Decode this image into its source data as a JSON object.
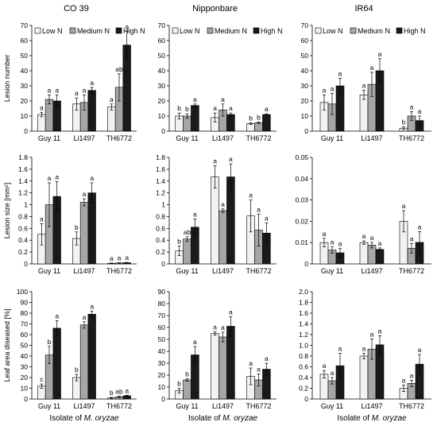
{
  "figure": {
    "xlabel_prefix": "Isolate of ",
    "xlabel_italic": "M. oryzae"
  },
  "colors": {
    "low": "#f2f2f2",
    "medium": "#a6a6a6",
    "high": "#1a1a1a",
    "axis": "#000000",
    "error": "#000000"
  },
  "chart_data": [
    {
      "id": "r0c0",
      "type": "bar",
      "title": "CO 39",
      "ylabel": "Lesion number",
      "ylim": [
        0,
        70
      ],
      "yticks": [
        0,
        10,
        20,
        30,
        40,
        50,
        60,
        70
      ],
      "ytick_labels": [
        "0",
        "10",
        "20",
        "30",
        "40",
        "50",
        "60",
        "70"
      ],
      "categories": [
        "Guy 11",
        "Li1497",
        "TH6772"
      ],
      "legend": [
        "Low N",
        "Medium N",
        "High N"
      ],
      "series": [
        {
          "name": "Low N",
          "values": [
            11,
            18,
            16
          ],
          "errors": [
            1.5,
            4,
            2
          ],
          "letters": [
            "a",
            "a",
            "a"
          ]
        },
        {
          "name": "Medium N",
          "values": [
            21,
            19,
            29
          ],
          "errors": [
            3,
            5,
            9
          ],
          "letters": [
            "a",
            "a",
            "ab"
          ]
        },
        {
          "name": "High N",
          "values": [
            20,
            27,
            57
          ],
          "errors": [
            4,
            2,
            9
          ],
          "letters": [
            "a",
            "a",
            "a"
          ]
        }
      ]
    },
    {
      "id": "r0c1",
      "type": "bar",
      "title": "Nipponbare",
      "ylabel": "",
      "ylim": [
        0,
        70
      ],
      "yticks": [
        0,
        10,
        20,
        30,
        40,
        50,
        60,
        70
      ],
      "ytick_labels": [
        "0",
        "10",
        "20",
        "30",
        "40",
        "50",
        "60",
        "70"
      ],
      "categories": [
        "Guy 11",
        "Li1497",
        "TH6772"
      ],
      "legend": [
        "Low N",
        "Medium N",
        "High N"
      ],
      "series": [
        {
          "name": "Low N",
          "values": [
            10,
            9,
            5
          ],
          "errors": [
            2,
            3,
            0.5
          ],
          "letters": [
            "b",
            "a",
            "b"
          ]
        },
        {
          "name": "Medium N",
          "values": [
            10,
            14,
            5.5
          ],
          "errors": [
            1.5,
            4,
            0.5
          ],
          "letters": [
            "b",
            "a",
            "b"
          ]
        },
        {
          "name": "High N",
          "values": [
            17,
            11,
            11
          ],
          "errors": [
            1,
            1,
            0.5
          ],
          "letters": [
            "a",
            "a",
            "a"
          ]
        }
      ]
    },
    {
      "id": "r0c2",
      "type": "bar",
      "title": "IR64",
      "ylabel": "",
      "ylim": [
        0,
        70
      ],
      "yticks": [
        0,
        10,
        20,
        30,
        40,
        50,
        60,
        70
      ],
      "ytick_labels": [
        "0",
        "10",
        "20",
        "30",
        "40",
        "50",
        "60",
        "70"
      ],
      "categories": [
        "Guy 11",
        "Li1497",
        "TH6772"
      ],
      "legend": [
        "Low N",
        "Medium N",
        "High N"
      ],
      "series": [
        {
          "name": "Low N",
          "values": [
            19,
            24,
            2
          ],
          "errors": [
            5,
            3,
            1
          ],
          "letters": [
            "a",
            "a",
            "b"
          ]
        },
        {
          "name": "Medium N",
          "values": [
            18,
            31,
            10
          ],
          "errors": [
            7,
            8,
            3
          ],
          "letters": [
            "a",
            "a",
            "a"
          ]
        },
        {
          "name": "High N",
          "values": [
            30,
            40,
            7
          ],
          "errors": [
            5,
            8,
            3
          ],
          "letters": [
            "a",
            "a",
            "a"
          ]
        }
      ]
    },
    {
      "id": "r1c0",
      "type": "bar",
      "title": "",
      "ylabel": "Lesion size [mm²]",
      "ylim": [
        0,
        1.8
      ],
      "yticks": [
        0,
        0.2,
        0.4,
        0.6,
        0.8,
        1.0,
        1.2,
        1.4,
        1.6,
        1.8
      ],
      "ytick_labels": [
        "0",
        "0.2",
        "0.4",
        "0.6",
        "0.8",
        "1",
        "1.2",
        "1.4",
        "1.6",
        "1.8"
      ],
      "categories": [
        "Guy 11",
        "Li1497",
        "TH6772"
      ],
      "series": [
        {
          "name": "Low N",
          "values": [
            0.5,
            0.43,
            0.01
          ],
          "errors": [
            0.18,
            0.11,
            0.005
          ],
          "letters": [
            "a",
            "b",
            "a"
          ]
        },
        {
          "name": "Medium N",
          "values": [
            1.0,
            1.04,
            0.015
          ],
          "errors": [
            0.37,
            0.06,
            0.005
          ],
          "letters": [
            "a",
            "a",
            "a"
          ]
        },
        {
          "name": "High N",
          "values": [
            1.14,
            1.2,
            0.02
          ],
          "errors": [
            0.25,
            0.17,
            0.005
          ],
          "letters": [
            "a",
            "a",
            "a"
          ]
        }
      ]
    },
    {
      "id": "r1c1",
      "type": "bar",
      "title": "",
      "ylabel": "",
      "ylim": [
        0,
        1.8
      ],
      "yticks": [
        0,
        0.2,
        0.4,
        0.6,
        0.8,
        1.0,
        1.2,
        1.4,
        1.6,
        1.8
      ],
      "ytick_labels": [
        "0",
        "0.2",
        "0.4",
        "0.6",
        "0.8",
        "1",
        "1.2",
        "1.4",
        "1.6",
        "1.8"
      ],
      "categories": [
        "Guy 11",
        "Li1497",
        "TH6772"
      ],
      "series": [
        {
          "name": "Low N",
          "values": [
            0.22,
            1.47,
            0.81
          ],
          "errors": [
            0.08,
            0.19,
            0.27
          ],
          "letters": [
            "b",
            "a",
            "a"
          ]
        },
        {
          "name": "Medium N",
          "values": [
            0.42,
            0.9,
            0.57
          ],
          "errors": [
            0.04,
            0.03,
            0.27
          ],
          "letters": [
            "ab",
            "a",
            "a"
          ]
        },
        {
          "name": "High N",
          "values": [
            0.62,
            1.47,
            0.52
          ],
          "errors": [
            0.14,
            0.22,
            0.17
          ],
          "letters": [
            "a",
            "a",
            "a"
          ]
        }
      ]
    },
    {
      "id": "r1c2",
      "type": "bar",
      "title": "",
      "ylabel": "",
      "ylim": [
        0,
        0.05
      ],
      "yticks": [
        0,
        0.01,
        0.02,
        0.03,
        0.04,
        0.05
      ],
      "ytick_labels": [
        "0",
        "0.01",
        "0.02",
        "0.03",
        "0.04",
        "0.05"
      ],
      "categories": [
        "Guy 11",
        "Li1497",
        "TH6772"
      ],
      "series": [
        {
          "name": "Low N",
          "values": [
            0.01,
            0.01,
            0.02
          ],
          "errors": [
            0.002,
            0.0008,
            0.005
          ],
          "letters": [
            "a",
            "a",
            "a"
          ]
        },
        {
          "name": "Medium N",
          "values": [
            0.0065,
            0.0088,
            0.0073
          ],
          "errors": [
            0.0015,
            0.0013,
            0.0022
          ],
          "letters": [
            "a",
            "a",
            "a"
          ]
        },
        {
          "name": "High N",
          "values": [
            0.0052,
            0.0068,
            0.0101
          ],
          "errors": [
            0.002,
            0.0007,
            0.005
          ],
          "letters": [
            "a",
            "a",
            "a"
          ]
        }
      ]
    },
    {
      "id": "r2c0",
      "type": "bar",
      "title": "",
      "ylabel": "Leaf area diseased [%]",
      "ylim": [
        0,
        100
      ],
      "yticks": [
        0,
        10,
        20,
        30,
        40,
        50,
        60,
        70,
        80,
        90,
        100
      ],
      "ytick_labels": [
        "0",
        "10",
        "20",
        "30",
        "40",
        "50",
        "60",
        "70",
        "80",
        "90",
        "100"
      ],
      "categories": [
        "Guy 11",
        "Li1497",
        "TH6772"
      ],
      "series": [
        {
          "name": "Low N",
          "values": [
            12,
            20,
            1
          ],
          "errors": [
            2,
            3,
            0.5
          ],
          "letters": [
            "c",
            "b",
            "b"
          ]
        },
        {
          "name": "Medium N",
          "values": [
            41,
            69,
            2
          ],
          "errors": [
            8,
            3,
            0.5
          ],
          "letters": [
            "b",
            "a",
            "ab"
          ]
        },
        {
          "name": "High N",
          "values": [
            66,
            79,
            3
          ],
          "errors": [
            7,
            3,
            0.5
          ],
          "letters": [
            "a",
            "a",
            "a"
          ]
        }
      ]
    },
    {
      "id": "r2c1",
      "type": "bar",
      "title": "",
      "ylabel": "",
      "ylim": [
        0,
        90
      ],
      "yticks": [
        0,
        10,
        20,
        30,
        40,
        50,
        60,
        70,
        80,
        90
      ],
      "ytick_labels": [
        "0",
        "10",
        "20",
        "30",
        "40",
        "50",
        "60",
        "70",
        "80",
        "90"
      ],
      "categories": [
        "Guy 11",
        "Li1497",
        "TH6772"
      ],
      "series": [
        {
          "name": "Low N",
          "values": [
            7,
            55,
            19
          ],
          "errors": [
            2,
            1.5,
            7
          ],
          "letters": [
            "b",
            "a",
            "a"
          ]
        },
        {
          "name": "Medium N",
          "values": [
            16,
            52,
            16
          ],
          "errors": [
            1,
            4,
            5
          ],
          "letters": [
            "b",
            "a",
            "a"
          ]
        },
        {
          "name": "High N",
          "values": [
            37,
            61,
            25
          ],
          "errors": [
            7,
            8,
            5
          ],
          "letters": [
            "a",
            "a",
            "a"
          ]
        }
      ]
    },
    {
      "id": "r2c2",
      "type": "bar",
      "title": "",
      "ylabel": "",
      "ylim": [
        0,
        2.0
      ],
      "yticks": [
        0,
        0.2,
        0.4,
        0.6,
        0.8,
        1.0,
        1.2,
        1.4,
        1.6,
        1.8,
        2.0
      ],
      "ytick_labels": [
        "0",
        "0.2",
        "0.4",
        "0.6",
        "0.8",
        "1.0",
        "1.2",
        "1.4",
        "1.6",
        "1.8",
        "2.0"
      ],
      "categories": [
        "Guy 11",
        "Li1497",
        "TH6772"
      ],
      "series": [
        {
          "name": "Low N",
          "values": [
            0.46,
            0.8,
            0.2
          ],
          "errors": [
            0.07,
            0.05,
            0.06
          ],
          "letters": [
            "a",
            "a",
            "a"
          ]
        },
        {
          "name": "Medium N",
          "values": [
            0.34,
            0.93,
            0.29
          ],
          "errors": [
            0.06,
            0.19,
            0.06
          ],
          "letters": [
            "a",
            "a",
            "a"
          ]
        },
        {
          "name": "High N",
          "values": [
            0.62,
            1.01,
            0.65
          ],
          "errors": [
            0.23,
            0.17,
            0.18
          ],
          "letters": [
            "a",
            "a",
            "a"
          ]
        }
      ]
    }
  ]
}
